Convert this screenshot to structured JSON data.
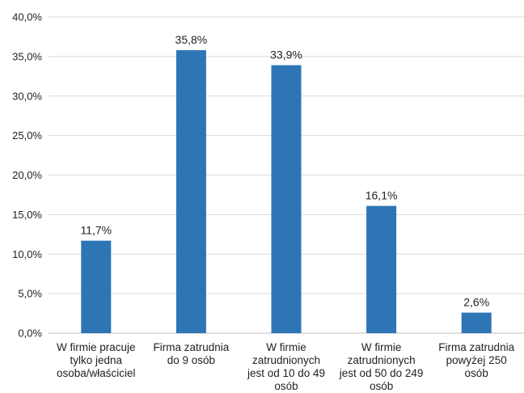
{
  "chart_data": {
    "type": "bar",
    "categories": [
      "W firmie pracuje tylko jedna osoba/właściciel",
      "Firma zatrudnia do 9 osób",
      "W firmie zatrudnionych jest od 10 do 49 osób",
      "W firmie zatrudnionych jest od 50 do 249 osób",
      "Firma zatrudnia powyżej 250 osób"
    ],
    "category_label_lines": [
      [
        "W firmie pracuje",
        "tylko jedna",
        "osoba/właściciel"
      ],
      [
        "Firma zatrudnia",
        "do 9 osób"
      ],
      [
        "W firmie",
        "zatrudnionych",
        "jest od 10 do 49",
        "osób"
      ],
      [
        "W firmie",
        "zatrudnionych",
        "jest od 50 do 249",
        "osób"
      ],
      [
        "Firma zatrudnia",
        "powyżej 250",
        "osób"
      ]
    ],
    "values": [
      11.7,
      35.8,
      33.9,
      16.1,
      2.6
    ],
    "value_labels": [
      "11,7%",
      "35,8%",
      "33,9%",
      "16,1%",
      "2,6%"
    ],
    "ylim": [
      0,
      40
    ],
    "y_ticks": [
      0,
      5,
      10,
      15,
      20,
      25,
      30,
      35,
      40
    ],
    "y_tick_labels": [
      "0,0%",
      "5,0%",
      "10,0%",
      "15,0%",
      "20,0%",
      "25,0%",
      "30,0%",
      "35,0%",
      "40,0%"
    ],
    "grid": true,
    "legend": "none",
    "title": "",
    "xlabel": "",
    "ylabel": "",
    "colors": {
      "bar": "#2E75B6",
      "grid": "#D9D9D9",
      "axis": "#BFBFBF",
      "text": "#222222"
    }
  }
}
